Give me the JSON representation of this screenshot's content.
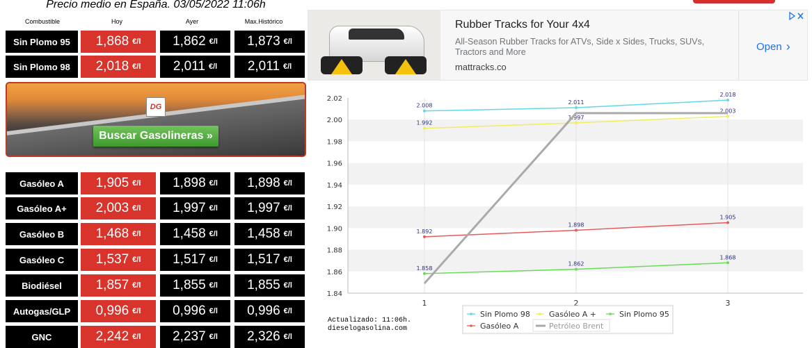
{
  "page_title": "Precio medio en España. 03/05/2022 11:06h",
  "unit": "€/l",
  "table_headers": [
    "Combustible",
    "Hoy",
    "Ayer",
    "Max.Histórico"
  ],
  "fuels": [
    {
      "name": "Sin Plomo 95",
      "today": "1,868",
      "yesterday": "1,862",
      "max": "1,873"
    },
    {
      "name": "Sin Plomo 98",
      "today": "2,018",
      "yesterday": "2,011",
      "max": "2,011"
    },
    {
      "name": "Gasóleo A",
      "today": "1,905",
      "yesterday": "1,898",
      "max": "1,898"
    },
    {
      "name": "Gasóleo A+",
      "today": "2,003",
      "yesterday": "1,997",
      "max": "1,997"
    },
    {
      "name": "Gasóleo B",
      "today": "1,468",
      "yesterday": "1,458",
      "max": "1,458"
    },
    {
      "name": "Gasóleo C",
      "today": "1,537",
      "yesterday": "1,517",
      "max": "1,517"
    },
    {
      "name": "Biodiésel",
      "today": "1,857",
      "yesterday": "1,855",
      "max": "1,855"
    },
    {
      "name": "Autogas/GLP",
      "today": "0,996",
      "yesterday": "0,996",
      "max": "0,996"
    },
    {
      "name": "GNC",
      "today": "2,242",
      "yesterday": "2,237",
      "max": "2,326"
    }
  ],
  "banner": {
    "button_label": "Buscar Gasolineras »",
    "logo_text": "DG"
  },
  "ad": {
    "title": "Rubber Tracks for Your 4x4",
    "description": "All-Season Rubber Tracks for ATVs, Side x Sides, Trucks, SUVs, Tractors and More",
    "domain": "mattracks.co",
    "cta": "Open"
  },
  "footer": {
    "updated": "Actualizado: 11:06h.",
    "site": "dieselogasolina.com"
  },
  "colors": {
    "today_bg": "#d9342b",
    "cell_bg": "#000000",
    "banner_button": "#4caf50"
  },
  "chart_data": {
    "type": "line",
    "x": [
      1,
      2,
      3
    ],
    "ylim": [
      1.84,
      2.02
    ],
    "yticks": [
      1.84,
      1.86,
      1.88,
      1.9,
      1.92,
      1.94,
      1.96,
      1.98,
      2.0,
      2.02
    ],
    "ytick_labels": [
      "1.84",
      "1.86",
      "1.88",
      "1.90",
      "1.92",
      "1.94",
      "1.96",
      "1.98",
      "2.00",
      "2.02"
    ],
    "grid": "horizontal bands",
    "legend_position": "bottom",
    "series": [
      {
        "name": "Sin Plomo 98",
        "color": "#5fd7e8",
        "values": [
          2.008,
          2.011,
          2.018
        ],
        "labels": [
          "2.008",
          "2.011",
          "2.018"
        ]
      },
      {
        "name": "Gasóleo A +",
        "color": "#f0ee5a",
        "values": [
          1.992,
          1.997,
          2.003
        ],
        "labels": [
          "1.992",
          "1.997",
          "2.003"
        ]
      },
      {
        "name": "Sin Plomo 95",
        "color": "#66dd55",
        "values": [
          1.858,
          1.862,
          1.868
        ],
        "labels": [
          "1.858",
          "1.862",
          "1.868"
        ]
      },
      {
        "name": "Gasóleo A",
        "color": "#e85a5a",
        "values": [
          1.892,
          1.898,
          1.905
        ],
        "labels": [
          "1.892",
          "1.898",
          "1.905"
        ]
      },
      {
        "name": "Petróleo Brent",
        "color": "#aaaaaa",
        "values": [
          1.849,
          2.006,
          2.006
        ],
        "labels": []
      }
    ]
  }
}
